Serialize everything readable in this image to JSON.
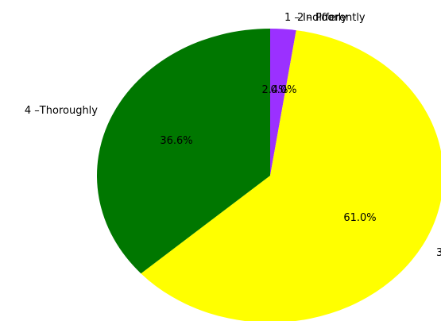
{
  "chart_data": {
    "type": "pie",
    "categories": [
      "1 – Indifferently",
      "2 – Poorly",
      "3",
      "4 –Thoroughly"
    ],
    "values": [
      0.0,
      2.4,
      61.0,
      36.6
    ],
    "percent_labels": [
      "0.0%",
      "2.4%",
      "61.0%",
      "36.6%"
    ],
    "colors": [
      "#ff0000",
      "#9b30ff",
      "#ffff00",
      "#007700"
    ],
    "start_angle_deg": 90,
    "direction": "clockwise"
  }
}
